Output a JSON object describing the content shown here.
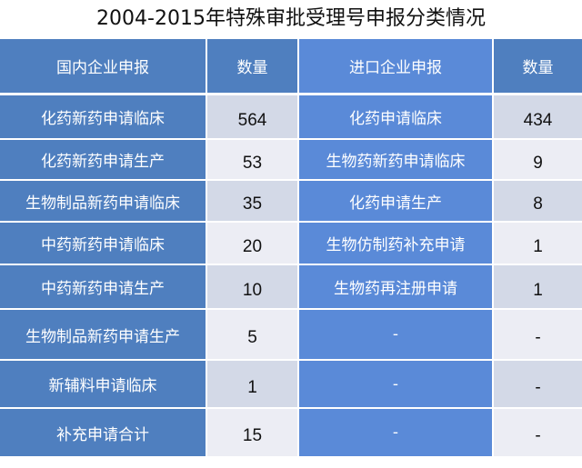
{
  "title": "2004-2015年特殊审批受理号申报分类情况",
  "headers": [
    "国内企业申报",
    "数量",
    "进口企业申报",
    "数量"
  ],
  "rows": [
    [
      "化药新药申请临床",
      "564",
      "化药申请临床",
      "434"
    ],
    [
      "化药新药申请生产",
      "53",
      "生物药新药申请临床",
      "9"
    ],
    [
      "生物制品新药申请临床",
      "35",
      "化药申请生产",
      "8"
    ],
    [
      "中药新药申请临床",
      "20",
      "生物仿制药补充申请",
      "1"
    ],
    [
      "中药新药申请生产",
      "10",
      "生物药再注册申请",
      "1"
    ],
    [
      "生物制品新药申请生产",
      "5",
      "-",
      "-"
    ],
    [
      "新辅料申请临床",
      "1",
      "-",
      "-"
    ],
    [
      "补充申请合计",
      "15",
      "-",
      "-"
    ]
  ],
  "colors": {
    "header_blue": "#4f7fbf",
    "import_blue": "#5a8ad8",
    "light_cell": "#ecedf4",
    "shaded_cell": "#d3d9e7"
  }
}
